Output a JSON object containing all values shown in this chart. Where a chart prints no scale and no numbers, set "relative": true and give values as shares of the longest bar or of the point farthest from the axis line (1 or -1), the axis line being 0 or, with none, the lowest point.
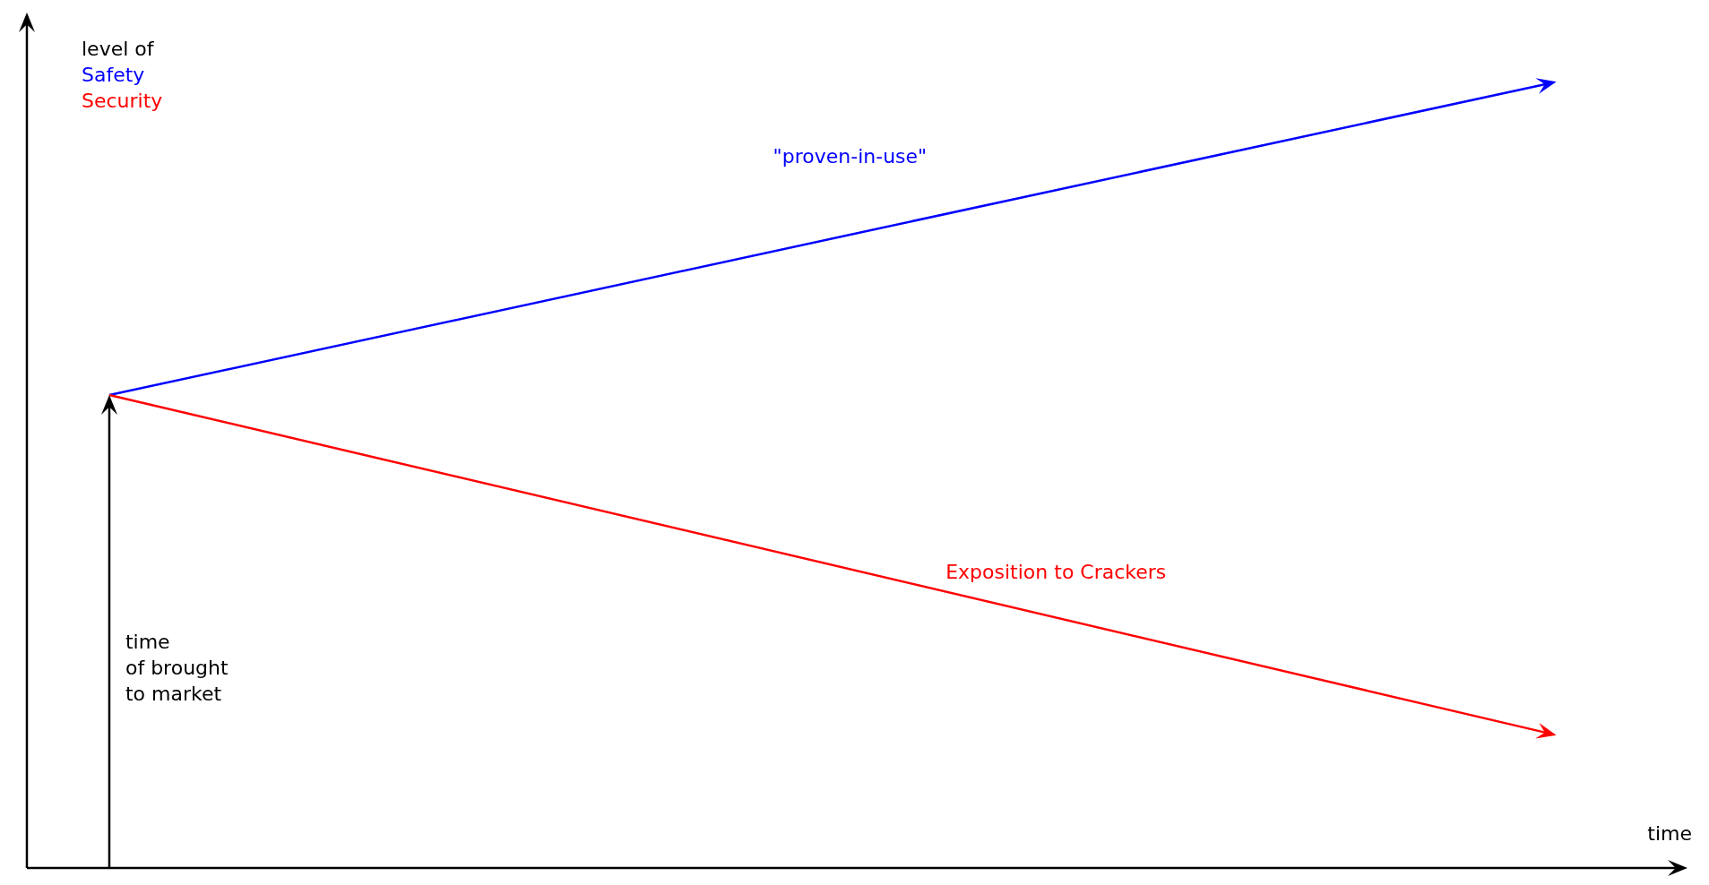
{
  "chart_data": {
    "type": "line",
    "relative": true,
    "xlabel": "time",
    "ylabel": "level of\nSafety\nSecurity",
    "categories": [
      null,
      null
    ],
    "series": [
      {
        "name": "\"proven-in-use\"",
        "color": "#0000ff",
        "values": [
          0.603,
          1
        ]
      },
      {
        "name": "Exposition to Crackers",
        "color": "#ff0000",
        "values": [
          0.603,
          0.172
        ]
      }
    ],
    "annotations": [
      "time\nof brought\nto market"
    ],
    "legend": false,
    "grid": false
  }
}
